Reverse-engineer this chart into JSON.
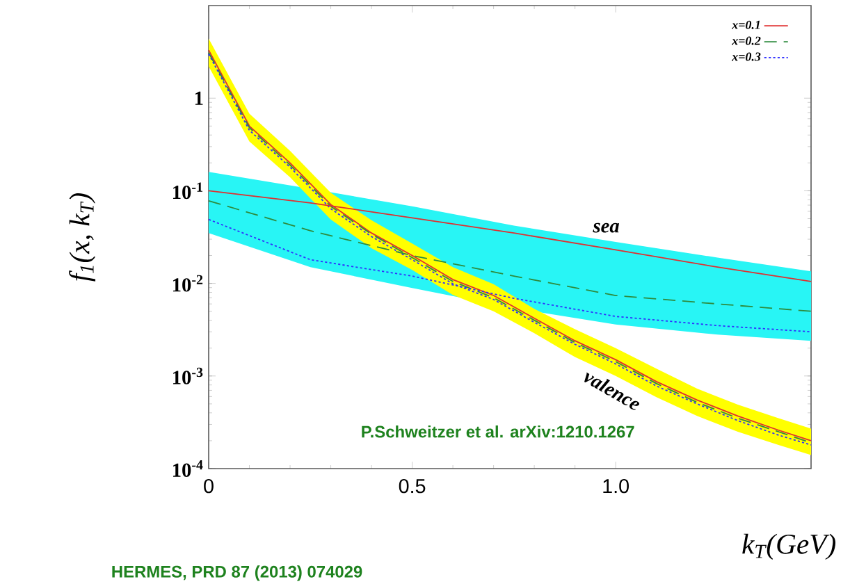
{
  "chart_data": {
    "type": "line",
    "xlabel": "k$_{T}$(GeV)",
    "ylabel": "f$_{1}$(x, k$_{T}$)",
    "log": "y",
    "legend": "top right",
    "xlim": [
      0,
      1.48
    ],
    "ylim": [
      0.0001,
      10
    ],
    "xticks": [
      0,
      0.5,
      {
        "value": 1,
        "label": "1.0"
      }
    ],
    "yticks": [
      {
        "value": 0.0001,
        "label": "10$^{-4}$"
      },
      {
        "value": 0.001,
        "label": "10$^{-3}$"
      },
      {
        "value": 0.01,
        "label": "10$^{-2}$"
      },
      {
        "value": 0.1,
        "label": "10$^{-1}$"
      },
      1
    ],
    "series": [
      {
        "name": "x=0.1",
        "color": "#e03030",
        "line_style": "solid",
        "x": [
          0,
          0.1,
          0.2,
          0.3,
          0.4,
          0.5,
          0.6,
          0.7,
          0.8,
          0.9,
          1.0,
          1.1,
          1.2,
          1.3,
          1.4,
          1.48
        ],
        "values": [
          3.3,
          0.5,
          0.2,
          0.071,
          0.035,
          0.02,
          0.011,
          0.0074,
          0.0042,
          0.0024,
          0.0015,
          0.00087,
          0.00055,
          0.00037,
          0.00026,
          0.0002
        ]
      },
      {
        "name": "x=0.2",
        "color": "#2e8b3e",
        "line_style": "dashed",
        "x": [
          0,
          0.1,
          0.2,
          0.3,
          0.4,
          0.5,
          0.6,
          0.7,
          0.8,
          0.9,
          1.0,
          1.1,
          1.2,
          1.3,
          1.4,
          1.48
        ],
        "values": [
          3.1,
          0.48,
          0.19,
          0.068,
          0.034,
          0.019,
          0.0105,
          0.007,
          0.004,
          0.0023,
          0.00143,
          0.00083,
          0.00052,
          0.00035,
          0.00025,
          0.00019
        ],
        "upper": [
          4.4,
          0.68,
          0.27,
          0.095,
          0.048,
          0.027,
          0.015,
          0.0098,
          0.0053,
          0.0032,
          0.002,
          0.0012,
          0.00073,
          0.00049,
          0.00035,
          0.00027
        ],
        "lower": [
          2.2,
          0.34,
          0.14,
          0.049,
          0.024,
          0.014,
          0.0075,
          0.005,
          0.0029,
          0.0016,
          0.001,
          0.00059,
          0.00037,
          0.00025,
          0.00018,
          0.00014
        ]
      },
      {
        "name": "x=0.3",
        "color": "#3030ff",
        "line_style": "dotted",
        "x": [
          0,
          0.1,
          0.2,
          0.3,
          0.4,
          0.5,
          0.6,
          0.7,
          0.8,
          0.9,
          1.0,
          1.1,
          1.2,
          1.3,
          1.4,
          1.48
        ],
        "values": [
          3.0,
          0.45,
          0.18,
          0.064,
          0.032,
          0.018,
          0.0099,
          0.0067,
          0.0038,
          0.0022,
          0.00135,
          0.00078,
          0.0005,
          0.00033,
          0.00023,
          0.00018
        ]
      },
      {
        "color": "#e03030",
        "line_style": "solid",
        "x": [
          0,
          0.25,
          0.5,
          0.75,
          1.0,
          1.25,
          1.48
        ],
        "values": [
          0.1,
          0.074,
          0.051,
          0.035,
          0.023,
          0.015,
          0.0105
        ]
      },
      {
        "color": "#2e8b3e",
        "line_style": "dashed",
        "x": [
          0,
          0.25,
          0.5,
          0.75,
          1.0,
          1.25,
          1.48
        ],
        "values": [
          0.078,
          0.037,
          0.02,
          0.012,
          0.0074,
          0.006,
          0.005
        ],
        "upper": [
          0.16,
          0.105,
          0.068,
          0.042,
          0.028,
          0.019,
          0.0135
        ],
        "lower": [
          0.035,
          0.015,
          0.0089,
          0.0054,
          0.0036,
          0.0028,
          0.0024
        ]
      },
      {
        "color": "#3030ff",
        "line_style": "dotted",
        "x": [
          0,
          0.25,
          0.5,
          0.75,
          1.0,
          1.25,
          1.48
        ],
        "values": [
          0.049,
          0.018,
          0.012,
          0.0069,
          0.0044,
          0.0035,
          0.003
        ]
      }
    ],
    "annotations": [
      "sea",
      "valence",
      "P.Schweitzer et al. arXiv:1210.1267",
      "HERMES, PRD 87 (2013) 074029"
    ]
  }
}
